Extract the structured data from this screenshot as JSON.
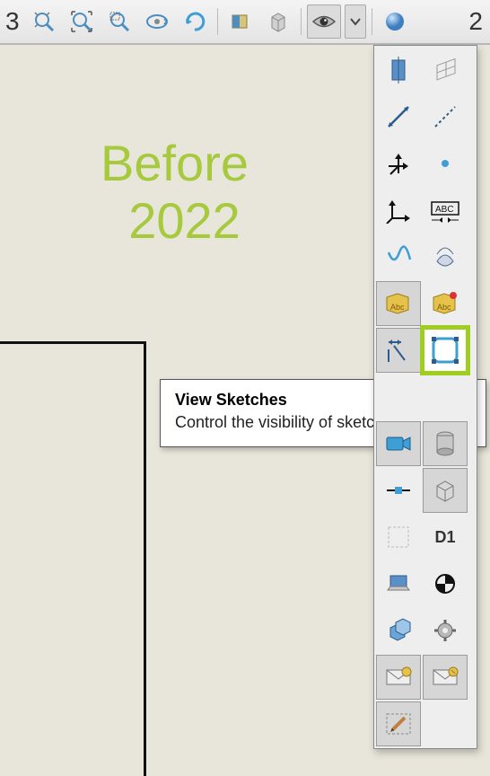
{
  "page_number": "3",
  "page_number_right": "2",
  "canvas_label": {
    "line1": "Before",
    "line2": "2022",
    "color": "#a6c93d",
    "font_size_pt": 42
  },
  "tooltip": {
    "title": "View Sketches",
    "body": "Control the visibility of sketches."
  },
  "top_toolbar": {
    "background_gradient_top": "#f4f4f4",
    "background_gradient_bottom": "#e4e4e4",
    "buttons": [
      {
        "name": "zoom-extents-icon"
      },
      {
        "name": "zoom-window-icon"
      },
      {
        "name": "zoom-previous-icon"
      },
      {
        "name": "orbit-icon"
      },
      {
        "name": "rotate-icon"
      },
      {
        "name": "sep"
      },
      {
        "name": "section-view-icon"
      },
      {
        "name": "display-mode-icon"
      },
      {
        "name": "sep"
      },
      {
        "name": "visibility-eye-icon",
        "pressed": true
      },
      {
        "name": "visibility-dropdown-icon",
        "pressed": true
      },
      {
        "name": "sep"
      },
      {
        "name": "appearance-sphere-icon"
      }
    ]
  },
  "visibility_panel": {
    "border_color": "#888888",
    "background": "#eeeeee",
    "highlight_color": "#9ecf1f",
    "cells": [
      {
        "name": "view-planes-icon",
        "pressed": false
      },
      {
        "name": "view-grid-planes-icon",
        "pressed": false
      },
      {
        "name": "view-axes-icon",
        "pressed": false
      },
      {
        "name": "view-dashed-axes-icon",
        "pressed": false
      },
      {
        "name": "view-origin-icon",
        "pressed": false
      },
      {
        "name": "view-point-icon",
        "pressed": false
      },
      {
        "name": "view-coord-system-icon",
        "pressed": false
      },
      {
        "name": "view-annotations-icon",
        "pressed": false
      },
      {
        "name": "view-curves-icon",
        "pressed": false
      },
      {
        "name": "view-surfaces-icon",
        "pressed": false
      },
      {
        "name": "view-decals-abc-icon",
        "pressed": true
      },
      {
        "name": "view-decals-abc2-icon",
        "pressed": false
      },
      {
        "name": "view-dim-names-icon",
        "pressed": true
      },
      {
        "name": "view-sketches-icon",
        "pressed": false,
        "highlight": true
      },
      {
        "name": "gap"
      },
      {
        "name": "gap"
      },
      {
        "name": "view-cameras-icon",
        "pressed": true
      },
      {
        "name": "view-lights-cyl-icon",
        "pressed": true
      },
      {
        "name": "view-connectors-icon",
        "pressed": false
      },
      {
        "name": "view-box-icon",
        "pressed": true
      },
      {
        "name": "view-empty-icon",
        "pressed": false
      },
      {
        "name": "view-d1-label",
        "pressed": false,
        "label": "D1"
      },
      {
        "name": "view-laptop-icon",
        "pressed": false
      },
      {
        "name": "view-target-icon",
        "pressed": false
      },
      {
        "name": "view-assembly-icon",
        "pressed": false
      },
      {
        "name": "view-settings-gear-icon",
        "pressed": false
      },
      {
        "name": "view-envelope1-icon",
        "pressed": true
      },
      {
        "name": "view-envelope2-icon",
        "pressed": true
      },
      {
        "name": "view-sketch-pen-icon",
        "pressed": true
      },
      {
        "name": "gap"
      }
    ]
  },
  "colors": {
    "canvas_bg": "#e8e6da",
    "sketch_line": "#111111"
  }
}
